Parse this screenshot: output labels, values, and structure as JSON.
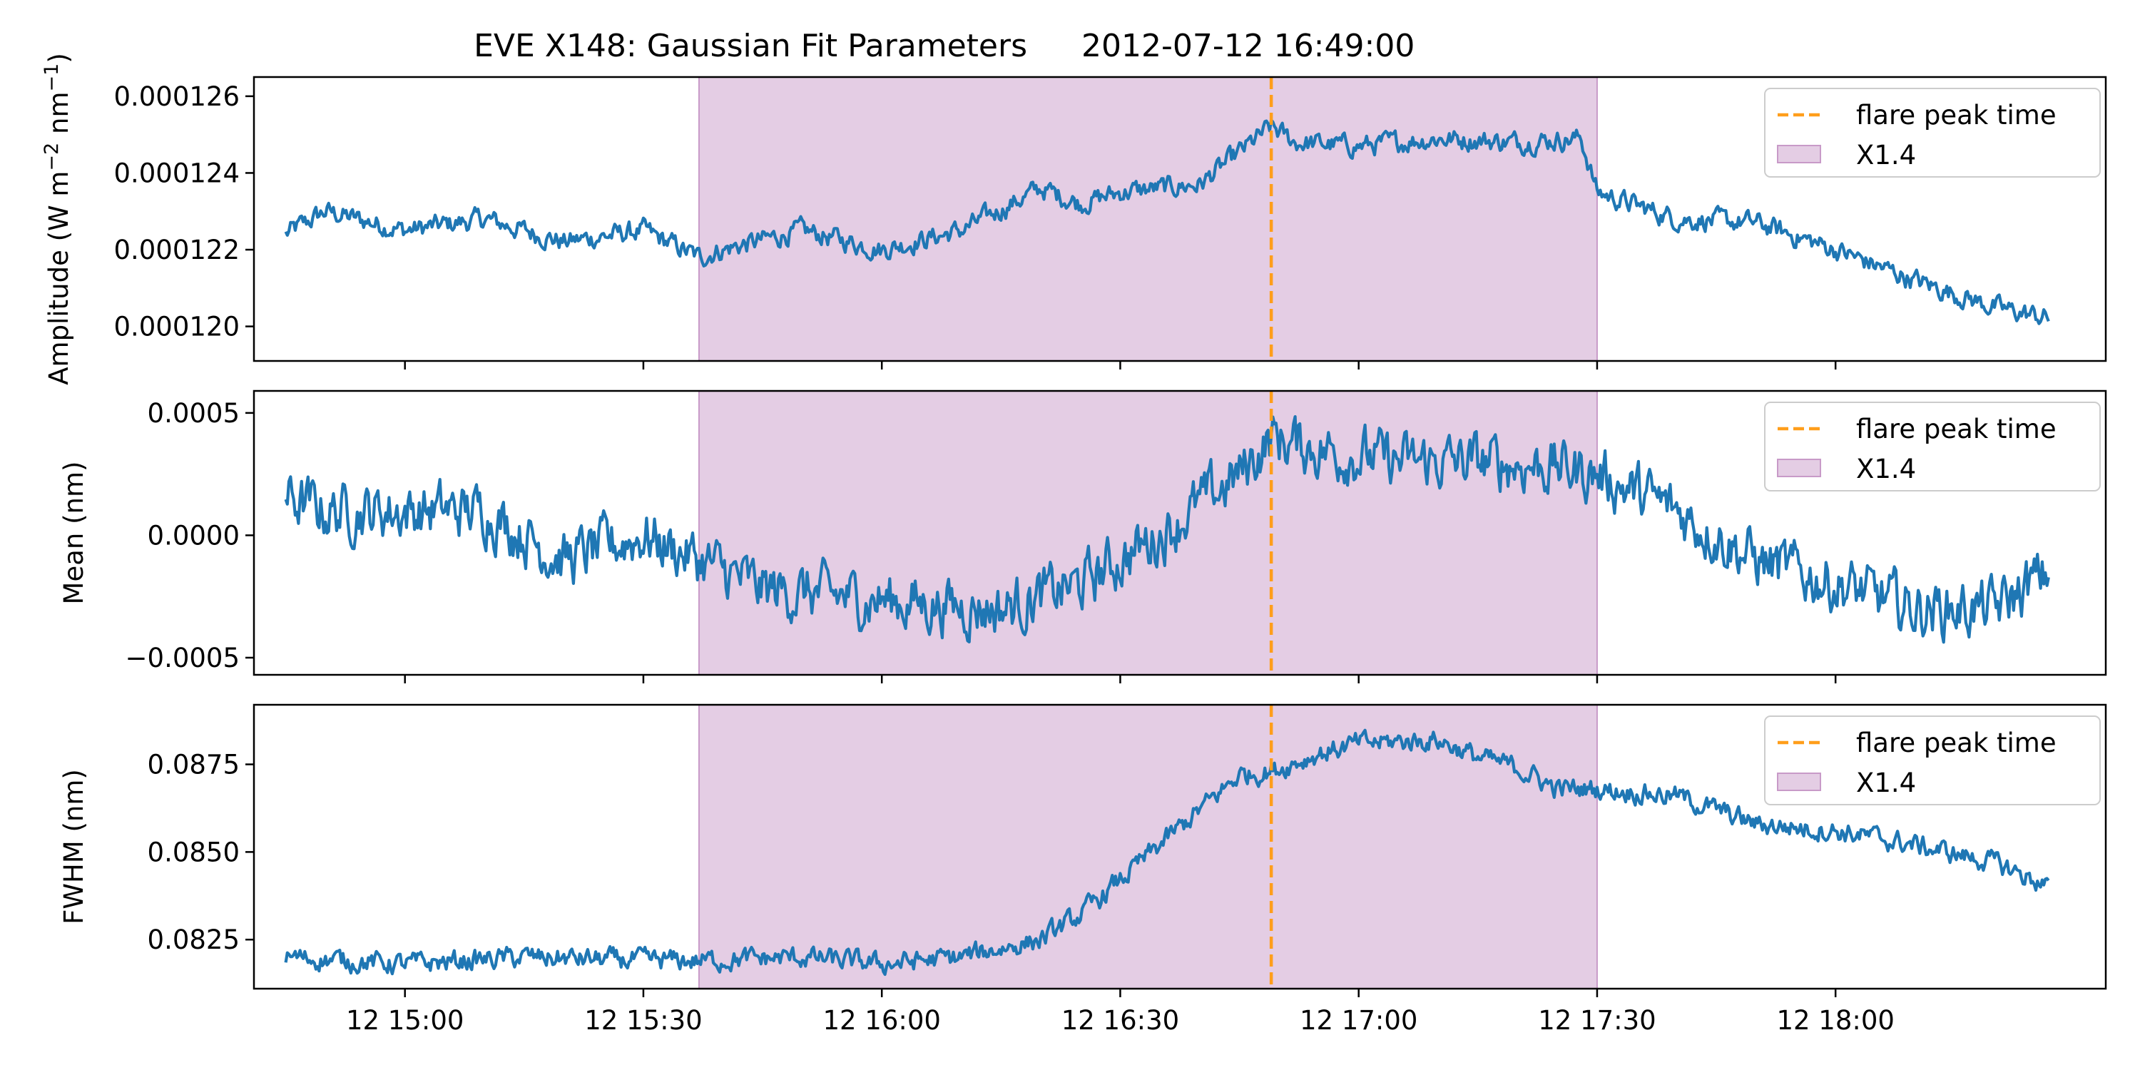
{
  "title_left": "EVE X148: Gaussian Fit Parameters",
  "title_right": "2012-07-12 16:49:00",
  "chart_data": {
    "type": "line",
    "x_axis": {
      "unit": "minutes (time of day, 2012-07-12)",
      "range": [
        "14:41",
        "18:34"
      ],
      "tick_labels": [
        "12 15:00",
        "12 15:30",
        "12 16:00",
        "12 16:30",
        "12 17:00",
        "12 17:30",
        "12 18:00"
      ]
    },
    "shaded_region": {
      "label": "X1.4",
      "start": "15:37",
      "end": "17:30",
      "color": "#e4cde4",
      "edge_color": "#c89ac8"
    },
    "flare_peak": {
      "label": "flare peak time",
      "time": "16:49",
      "color": "#ff9e1b"
    },
    "line_color": "#1f77b4",
    "panels": [
      {
        "ylabel_main": "Amplitude (W m",
        "ylabel_sup1": "−2",
        "ylabel_mid": " nm",
        "ylabel_sup2": "−1",
        "ylabel_end": ")",
        "ylim": [
          0.0001191,
          0.0001265
        ],
        "yticks": [
          0.00012,
          0.000122,
          0.000124,
          0.000126
        ],
        "ytick_labels": [
          "0.000120",
          "0.000122",
          "0.000124",
          "0.000126"
        ],
        "legend": [
          "flare peak time",
          "X1.4"
        ],
        "series": {
          "x": [
            "14:45",
            "14:50",
            "15:00",
            "15:10",
            "15:20",
            "15:30",
            "15:37",
            "15:40",
            "15:50",
            "16:00",
            "16:10",
            "16:20",
            "16:25",
            "16:30",
            "16:40",
            "16:49",
            "16:52",
            "17:00",
            "17:10",
            "17:20",
            "17:28",
            "17:30",
            "17:40",
            "17:50",
            "18:00",
            "18:10",
            "18:20",
            "18:27"
          ],
          "values": [
            0.0001224,
            0.000123,
            0.0001225,
            0.0001228,
            0.0001222,
            0.0001225,
            0.0001218,
            0.000122,
            0.0001225,
            0.000122,
            0.0001225,
            0.0001236,
            0.0001232,
            0.0001235,
            0.0001237,
            0.0001252,
            0.0001248,
            0.0001247,
            0.0001249,
            0.0001248,
            0.0001249,
            0.0001235,
            0.0001228,
            0.0001227,
            0.000122,
            0.0001212,
            0.0001205,
            0.0001202
          ]
        }
      },
      {
        "ylabel": "Mean (nm)",
        "ylim": [
          -0.00057,
          0.00059
        ],
        "yticks": [
          -0.0005,
          0,
          0.0005
        ],
        "ytick_labels": [
          "−0.0005",
          "0.0000",
          "0.0005"
        ],
        "legend": [
          "flare peak time",
          "X1.4"
        ],
        "series": {
          "x": [
            "14:45",
            "14:50",
            "15:00",
            "15:10",
            "15:20",
            "15:30",
            "15:37",
            "15:45",
            "15:55",
            "16:05",
            "16:15",
            "16:25",
            "16:35",
            "16:45",
            "16:49",
            "16:55",
            "17:05",
            "17:15",
            "17:25",
            "17:30",
            "17:40",
            "17:50",
            "18:00",
            "18:10",
            "18:20",
            "18:27"
          ],
          "values": [
            0.00015,
            0.0001,
            0.0001,
            0.0001,
            -0.0001,
            0.0,
            -0.0001,
            -0.00022,
            -0.00025,
            -0.00028,
            -0.0003,
            -0.0002,
            0.0,
            0.00025,
            0.0004,
            0.00035,
            0.0003,
            0.0003,
            0.00028,
            0.00025,
            0.0001,
            -0.0001,
            -0.0002,
            -0.0003,
            -0.0003,
            -0.00015
          ]
        }
      },
      {
        "ylabel": "FWHM (nm)",
        "ylim": [
          0.0811,
          0.0892
        ],
        "yticks": [
          0.0825,
          0.085,
          0.0875
        ],
        "ytick_labels": [
          "0.0825",
          "0.0850",
          "0.0875"
        ],
        "legend": [
          "flare peak time",
          "X1.4"
        ],
        "series": {
          "x": [
            "14:45",
            "15:00",
            "15:15",
            "15:30",
            "15:37",
            "15:50",
            "16:00",
            "16:10",
            "16:20",
            "16:25",
            "16:30",
            "16:35",
            "16:40",
            "16:45",
            "16:49",
            "16:55",
            "17:00",
            "17:10",
            "17:15",
            "17:20",
            "17:25",
            "17:30",
            "17:40",
            "17:50",
            "18:00",
            "18:10",
            "18:20",
            "18:27"
          ],
          "values": [
            0.082,
            0.0818,
            0.082,
            0.0819,
            0.0819,
            0.082,
            0.0818,
            0.082,
            0.0825,
            0.0832,
            0.0842,
            0.0852,
            0.0862,
            0.0872,
            0.0873,
            0.0878,
            0.0881,
            0.0882,
            0.0877,
            0.0874,
            0.0868,
            0.0868,
            0.0866,
            0.0858,
            0.0856,
            0.0852,
            0.0847,
            0.084
          ]
        }
      }
    ]
  }
}
